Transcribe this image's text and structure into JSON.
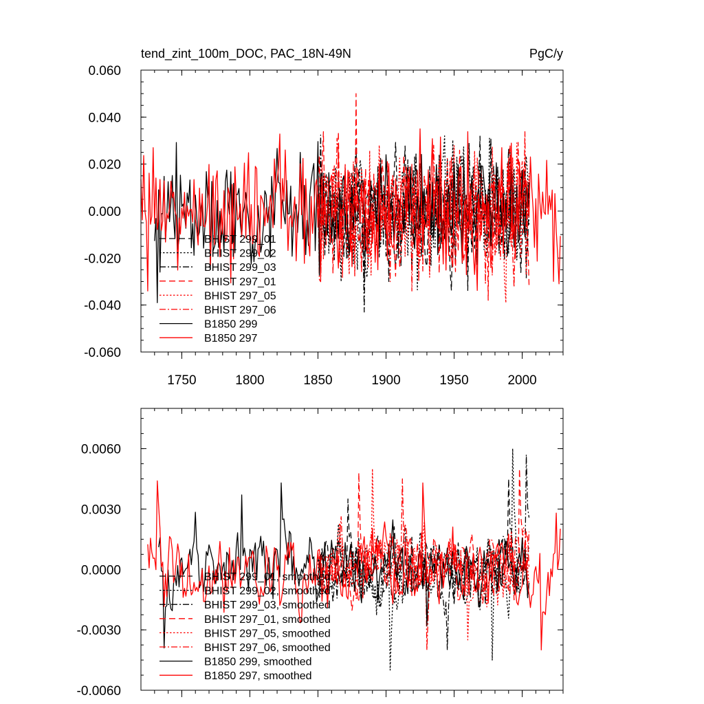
{
  "chart_data": [
    {
      "type": "line",
      "title": "tend_zint_100m_DOC, PAC_18N-49N",
      "units": "PgC/y",
      "xlim": [
        1720,
        2030
      ],
      "ylim": [
        -0.06,
        0.06
      ],
      "x_ticks": [
        1750,
        1800,
        1850,
        1900,
        1950,
        2000
      ],
      "x_tick_labels": [
        "1750",
        "1800",
        "1850",
        "1900",
        "1950",
        "2000"
      ],
      "y_ticks": [
        -0.06,
        -0.04,
        -0.02,
        0.0,
        0.02,
        0.04,
        0.06
      ],
      "y_tick_labels": [
        "-0.060",
        "-0.040",
        "-0.020",
        "0.000",
        "0.020",
        "0.040",
        "0.060"
      ],
      "grid": false,
      "legend_position": "lower-left",
      "series": [
        {
          "name": "BHIST 299_01",
          "color": "#000000",
          "dash": "long-dash",
          "x_start": 1850,
          "x_end": 2005,
          "mean": 0.0,
          "amp": 0.013,
          "spikes": [
            [
              1878,
              0.027
            ],
            [
              1902,
              -0.03
            ]
          ]
        },
        {
          "name": "BHIST 299_02",
          "color": "#000000",
          "dash": "dot",
          "x_start": 1850,
          "x_end": 2005,
          "mean": 0.0,
          "amp": 0.013,
          "spikes": [
            [
              1943,
              0.032
            ],
            [
              1976,
              0.031
            ],
            [
              1867,
              -0.03
            ]
          ]
        },
        {
          "name": "BHIST 299_03",
          "color": "#000000",
          "dash": "dash-dot",
          "x_start": 1850,
          "x_end": 2005,
          "mean": 0.0,
          "amp": 0.013,
          "spikes": [
            [
              1884,
              -0.043
            ],
            [
              1961,
              0.029
            ],
            [
              2003,
              -0.029
            ]
          ]
        },
        {
          "name": "BHIST 297_01",
          "color": "#ff0000",
          "dash": "long-dash",
          "x_start": 1850,
          "x_end": 2005,
          "mean": 0.0,
          "amp": 0.013,
          "spikes": [
            [
              1878,
              0.05
            ],
            [
              1975,
              -0.038
            ]
          ]
        },
        {
          "name": "BHIST 297_05",
          "color": "#ff0000",
          "dash": "dot",
          "x_start": 1850,
          "x_end": 2005,
          "mean": 0.0,
          "amp": 0.013,
          "spikes": [
            [
              1988,
              -0.039
            ],
            [
              1996,
              0.029
            ]
          ]
        },
        {
          "name": "BHIST 297_06",
          "color": "#ff0000",
          "dash": "dash-dot",
          "x_start": 1850,
          "x_end": 2005,
          "mean": 0.0,
          "amp": 0.013,
          "spikes": [
            [
              1935,
              0.028
            ],
            [
              1919,
              -0.034
            ]
          ]
        },
        {
          "name": "B1850 299",
          "color": "#000000",
          "dash": "solid",
          "x_start": 1730,
          "x_end": 2005,
          "mean": 0.0,
          "amp": 0.012,
          "spikes": [
            [
              1732,
              -0.039
            ],
            [
              1837,
              0.025
            ],
            [
              1900,
              0.024
            ]
          ]
        },
        {
          "name": "B1850 297",
          "color": "#ff0000",
          "dash": "solid",
          "x_start": 1720,
          "x_end": 2028,
          "mean": 0.0,
          "amp": 0.013,
          "spikes": [
            [
              1729,
              0.027
            ],
            [
              1925,
              0.035
            ],
            [
              1725,
              -0.034
            ],
            [
              1985,
              0.027
            ],
            [
              2027,
              -0.031
            ]
          ]
        }
      ]
    },
    {
      "type": "line",
      "title": "",
      "xlim": [
        1720,
        2030
      ],
      "ylim": [
        -0.006,
        0.008
      ],
      "y_ticks": [
        -0.006,
        -0.003,
        0.0,
        0.003,
        0.006
      ],
      "y_tick_labels": [
        "-0.0060",
        "-0.0030",
        "0.0000",
        "0.0030",
        "0.0060"
      ],
      "grid": false,
      "legend_position": "lower-left",
      "series": [
        {
          "name": "BHIST 299_01, smoothed",
          "color": "#000000",
          "dash": "long-dash",
          "x_start": 1850,
          "x_end": 2005,
          "mean": 0.0,
          "amp": 0.0015,
          "spikes": [
            [
              1872,
              0.0035
            ],
            [
              1990,
              0.0045
            ]
          ]
        },
        {
          "name": "BHIST 299_02, smoothed",
          "color": "#000000",
          "dash": "dot",
          "x_start": 1850,
          "x_end": 2005,
          "mean": 0.0,
          "amp": 0.0015,
          "spikes": [
            [
              1903,
              -0.005
            ],
            [
              1993,
              0.006
            ],
            [
              1978,
              -0.0045
            ]
          ]
        },
        {
          "name": "BHIST 299_03, smoothed",
          "color": "#000000",
          "dash": "dash-dot",
          "x_start": 1850,
          "x_end": 2005,
          "mean": 0.0,
          "amp": 0.0015,
          "spikes": [
            [
              2003,
              0.0057
            ],
            [
              1945,
              -0.004
            ]
          ]
        },
        {
          "name": "BHIST 297_01, smoothed",
          "color": "#ff0000",
          "dash": "long-dash",
          "x_start": 1850,
          "x_end": 2005,
          "mean": 0.0,
          "amp": 0.0016,
          "spikes": [
            [
              1880,
              0.0048
            ],
            [
              1998,
              0.005
            ]
          ]
        },
        {
          "name": "BHIST 297_05, smoothed",
          "color": "#ff0000",
          "dash": "dot",
          "x_start": 1850,
          "x_end": 2005,
          "mean": 0.0,
          "amp": 0.0016,
          "spikes": [
            [
              1890,
              0.005
            ],
            [
              1960,
              -0.0035
            ]
          ]
        },
        {
          "name": "BHIST 297_06, smoothed",
          "color": "#ff0000",
          "dash": "dash-dot",
          "x_start": 1850,
          "x_end": 2005,
          "mean": 0.0,
          "amp": 0.0016,
          "spikes": [
            [
              1912,
              0.0045
            ],
            [
              1930,
              -0.004
            ]
          ]
        },
        {
          "name": "B1850 299, smoothed",
          "color": "#000000",
          "dash": "solid",
          "x_start": 1733,
          "x_end": 2005,
          "mean": 0.0,
          "amp": 0.0017,
          "spikes": [
            [
              1737,
              -0.0039
            ],
            [
              1823,
              0.0043
            ],
            [
              1794,
              0.0037
            ],
            [
              1930,
              -0.0028
            ]
          ]
        },
        {
          "name": "B1850 297, smoothed",
          "color": "#ff0000",
          "dash": "solid",
          "x_start": 1725,
          "x_end": 2028,
          "mean": 0.0,
          "amp": 0.0018,
          "spikes": [
            [
              1732,
              0.0044
            ],
            [
              2014,
              -0.004
            ],
            [
              2025,
              0.0028
            ],
            [
              1927,
              0.0043
            ]
          ]
        }
      ]
    }
  ]
}
